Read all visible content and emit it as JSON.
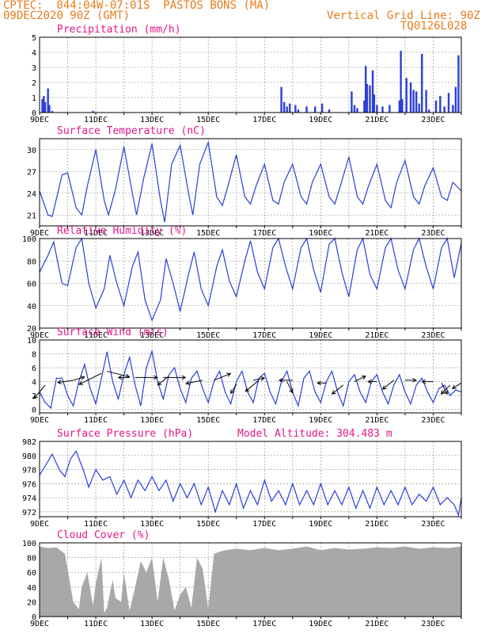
{
  "header": {
    "line1": "CPTEC:  044:04W-07:01S  PASTOS BONS (MA)",
    "line2_left": "09DEC2020 90Z (GMT)",
    "line2_right": "Vertical Grid Line: 90Z",
    "line3_right": "TQ0126L028"
  },
  "colors": {
    "line": "#2a3fd6",
    "bar": "#2a3fd6",
    "cloud": "#a8a8a8",
    "title": "#e0198a",
    "header": "#e87b1c"
  },
  "chart_data": [
    {
      "type": "bar",
      "title": "Precipitation (mm/h)",
      "ylim": [
        0,
        5
      ],
      "yticks": [
        0,
        1,
        2,
        3,
        4,
        5
      ],
      "x_day_ticks": [
        "9DEC",
        "11DEC",
        "13DEC",
        "15DEC",
        "17DEC",
        "19DEC",
        "21DEC",
        "23DEC"
      ],
      "x_start": 9,
      "x_end": 24,
      "events": [
        [
          9.1,
          0.9
        ],
        [
          9.15,
          1.1
        ],
        [
          9.2,
          0.7
        ],
        [
          9.3,
          1.6
        ],
        [
          9.35,
          0.5
        ],
        [
          9.45,
          0.1
        ],
        [
          10.9,
          0.1
        ],
        [
          17.6,
          1.7
        ],
        [
          17.7,
          0.7
        ],
        [
          17.8,
          0.4
        ],
        [
          17.9,
          0.6
        ],
        [
          18.1,
          0.5
        ],
        [
          18.2,
          0.2
        ],
        [
          18.5,
          0.4
        ],
        [
          18.8,
          0.4
        ],
        [
          19.05,
          0.6
        ],
        [
          19.3,
          0.2
        ],
        [
          20.1,
          1.4
        ],
        [
          20.2,
          0.5
        ],
        [
          20.3,
          0.3
        ],
        [
          20.55,
          0.8
        ],
        [
          20.6,
          3.1
        ],
        [
          20.65,
          1.9
        ],
        [
          20.75,
          1.8
        ],
        [
          20.85,
          2.8
        ],
        [
          20.9,
          1.2
        ],
        [
          21.0,
          0.5
        ],
        [
          21.2,
          0.4
        ],
        [
          21.45,
          0.5
        ],
        [
          21.8,
          0.8
        ],
        [
          21.85,
          4.1
        ],
        [
          21.9,
          0.9
        ],
        [
          22.05,
          2.3
        ],
        [
          22.2,
          2.0
        ],
        [
          22.3,
          1.5
        ],
        [
          22.4,
          1.4
        ],
        [
          22.5,
          0.6
        ],
        [
          22.6,
          3.9
        ],
        [
          22.75,
          1.5
        ],
        [
          22.85,
          0.2
        ],
        [
          23.1,
          0.8
        ],
        [
          23.25,
          1.1
        ],
        [
          23.4,
          0.4
        ],
        [
          23.55,
          1.3
        ],
        [
          23.7,
          0.5
        ],
        [
          23.8,
          1.7
        ],
        [
          23.9,
          3.8
        ]
      ]
    },
    {
      "type": "line",
      "title": "Surface Temperature (nC)",
      "ylim": [
        19.5,
        31.5
      ],
      "yticks": [
        21,
        24,
        27,
        30
      ],
      "x_day_ticks": [
        "9DEC",
        "11DEC",
        "13DEC",
        "15DEC",
        "17DEC",
        "19DEC",
        "21DEC",
        "23DEC"
      ],
      "x": [
        9.0,
        9.3,
        9.45,
        9.8,
        10.0,
        10.3,
        10.5,
        10.7,
        11.0,
        11.3,
        11.45,
        11.7,
        12.0,
        12.3,
        12.45,
        12.7,
        13.0,
        13.3,
        13.45,
        13.7,
        14.0,
        14.3,
        14.45,
        14.7,
        15.0,
        15.3,
        15.5,
        15.7,
        16.0,
        16.3,
        16.5,
        16.7,
        17.0,
        17.3,
        17.5,
        17.7,
        18.0,
        18.3,
        18.5,
        18.7,
        19.0,
        19.3,
        19.5,
        19.7,
        20.0,
        20.3,
        20.5,
        20.7,
        21.0,
        21.3,
        21.5,
        21.7,
        22.0,
        22.3,
        22.5,
        22.7,
        23.0,
        23.3,
        23.5,
        23.7,
        24.0
      ],
      "y": [
        24.3,
        21.0,
        20.8,
        26.5,
        26.8,
        22.0,
        21.0,
        25.0,
        30.0,
        23.0,
        21.0,
        24.5,
        30.4,
        24.0,
        21.0,
        26.0,
        30.8,
        23.0,
        20.0,
        28.0,
        30.6,
        24.0,
        21.0,
        28.0,
        31.0,
        23.5,
        22.3,
        25.0,
        29.3,
        23.5,
        22.5,
        25.0,
        28.0,
        23.0,
        22.5,
        25.5,
        28.0,
        23.5,
        22.5,
        25.5,
        28.0,
        23.5,
        22.5,
        25.0,
        29.0,
        23.5,
        22.5,
        25.0,
        28.0,
        23.0,
        22.0,
        25.5,
        28.5,
        23.5,
        22.5,
        25.0,
        27.5,
        23.5,
        23.0,
        25.5,
        24.3
      ]
    },
    {
      "type": "line",
      "title": "Relative Humidity (%)",
      "ylim": [
        20,
        100
      ],
      "yticks": [
        20,
        40,
        60,
        80,
        100
      ],
      "x_day_ticks": [
        "9DEC",
        "11DEC",
        "13DEC",
        "15DEC",
        "17DEC",
        "19DEC",
        "21DEC",
        "23DEC"
      ],
      "x": [
        9.0,
        9.3,
        9.5,
        9.8,
        10.0,
        10.3,
        10.5,
        10.75,
        11.0,
        11.3,
        11.5,
        11.75,
        12.0,
        12.3,
        12.5,
        12.75,
        13.0,
        13.3,
        13.5,
        13.75,
        14.0,
        14.3,
        14.5,
        14.75,
        15.0,
        15.3,
        15.5,
        15.75,
        16.0,
        16.3,
        16.5,
        16.75,
        17.0,
        17.3,
        17.5,
        17.75,
        18.0,
        18.3,
        18.5,
        18.75,
        19.0,
        19.3,
        19.5,
        19.75,
        20.0,
        20.3,
        20.5,
        20.75,
        21.0,
        21.3,
        21.5,
        21.75,
        22.0,
        22.3,
        22.5,
        22.75,
        23.0,
        23.3,
        23.5,
        23.75,
        24.0
      ],
      "y": [
        70,
        85,
        97,
        60,
        58,
        92,
        100,
        60,
        38,
        55,
        85,
        60,
        40,
        75,
        88,
        45,
        27,
        45,
        82,
        60,
        35,
        68,
        88,
        55,
        40,
        75,
        90,
        62,
        48,
        80,
        98,
        70,
        55,
        92,
        100,
        75,
        55,
        92,
        100,
        72,
        52,
        95,
        100,
        70,
        48,
        90,
        100,
        68,
        55,
        92,
        100,
        72,
        55,
        90,
        100,
        75,
        55,
        92,
        100,
        65,
        96
      ]
    },
    {
      "type": "line",
      "title": "Surface Wind (m/s)",
      "ylim": [
        -0.5,
        10
      ],
      "yticks": [
        0,
        2,
        4,
        6,
        8,
        10
      ],
      "x_day_ticks": [
        "9DEC",
        "11DEC",
        "13DEC",
        "15DEC",
        "17DEC",
        "19DEC",
        "21DEC",
        "23DEC"
      ],
      "x": [
        9.0,
        9.2,
        9.4,
        9.6,
        9.8,
        10.0,
        10.2,
        10.4,
        10.6,
        10.8,
        11.0,
        11.2,
        11.4,
        11.6,
        11.8,
        12.0,
        12.2,
        12.4,
        12.6,
        12.8,
        13.0,
        13.2,
        13.4,
        13.6,
        13.8,
        14.0,
        14.2,
        14.4,
        14.6,
        14.8,
        15.0,
        15.2,
        15.4,
        15.6,
        15.8,
        16.0,
        16.2,
        16.4,
        16.6,
        16.8,
        17.0,
        17.2,
        17.4,
        17.6,
        17.8,
        18.0,
        18.2,
        18.4,
        18.6,
        18.8,
        19.0,
        19.2,
        19.4,
        19.6,
        19.8,
        20.0,
        20.2,
        20.4,
        20.6,
        20.8,
        21.0,
        21.2,
        21.4,
        21.6,
        21.8,
        22.0,
        22.2,
        22.4,
        22.6,
        22.8,
        23.0,
        23.2,
        23.4,
        23.6,
        23.8,
        24.0
      ],
      "y": [
        2.5,
        1.0,
        0.2,
        4.5,
        4.5,
        2.0,
        0.5,
        4.0,
        6.5,
        3.0,
        0.8,
        4.5,
        8.3,
        4.0,
        1.5,
        5.0,
        7.5,
        3.5,
        0.5,
        6.0,
        8.4,
        4.0,
        1.5,
        5.0,
        6.0,
        3.0,
        1.0,
        4.5,
        5.5,
        3.0,
        1.0,
        4.0,
        5.5,
        2.5,
        0.8,
        4.0,
        5.5,
        2.5,
        1.0,
        4.5,
        5.2,
        2.5,
        0.8,
        4.0,
        5.5,
        2.5,
        0.5,
        4.5,
        5.5,
        2.5,
        1.0,
        4.0,
        5.5,
        2.5,
        0.5,
        4.0,
        5.0,
        2.5,
        1.0,
        4.0,
        5.0,
        2.5,
        0.8,
        3.5,
        5.0,
        2.5,
        0.8,
        3.5,
        4.5,
        2.5,
        1.0,
        3.0,
        3.5,
        2.0,
        2.8,
        2.5
      ],
      "arrows": [
        [
          9.2,
          3.5,
          -1.0,
          -1.2
        ],
        [
          10.2,
          4.2,
          -1.4,
          -0.2
        ],
        [
          10.2,
          4.2,
          1.0,
          0.3
        ],
        [
          11.2,
          5.2,
          -2.0,
          -1.0
        ],
        [
          11.4,
          5.5,
          2.0,
          -0.5
        ],
        [
          12.4,
          4.6,
          2.0,
          0.0
        ],
        [
          12.2,
          4.6,
          -1.0,
          0.0
        ],
        [
          13.4,
          4.6,
          2.0,
          0.0
        ],
        [
          13.6,
          4.8,
          -1.0,
          -0.8
        ],
        [
          14.8,
          4.2,
          -1.5,
          -0.3
        ],
        [
          15.2,
          4.2,
          1.5,
          0.6
        ],
        [
          16.0,
          3.6,
          -0.5,
          -0.8
        ],
        [
          16.6,
          4.2,
          1.0,
          0.2
        ],
        [
          16.8,
          4.2,
          -1.2,
          -1.0
        ],
        [
          18.0,
          4.2,
          -1.2,
          0.0
        ],
        [
          17.8,
          4.0,
          0.5,
          -1.0
        ],
        [
          19.2,
          3.8,
          -0.8,
          0.0
        ],
        [
          19.8,
          3.5,
          -1.0,
          -0.8
        ],
        [
          20.2,
          4.0,
          1.0,
          0.5
        ],
        [
          21.0,
          4.0,
          -0.8,
          0.0
        ],
        [
          21.6,
          4.2,
          -1.0,
          -0.8
        ],
        [
          22.0,
          4.2,
          1.0,
          0.0
        ],
        [
          23.0,
          4.0,
          -1.0,
          0.0
        ],
        [
          23.3,
          3.8,
          0.5,
          -1.0
        ],
        [
          23.6,
          3.5,
          -0.8,
          -0.8
        ],
        [
          24.0,
          3.8,
          -0.8,
          -0.5
        ]
      ]
    },
    {
      "type": "line",
      "title": "Surface Pressure (hPa)",
      "title2": "Model Altitude: 304.483 m",
      "ylim": [
        971.3,
        982
      ],
      "yticks": [
        972,
        974,
        976,
        978,
        980,
        982
      ],
      "x_day_ticks": [
        "9DEC",
        "11DEC",
        "13DEC",
        "15DEC",
        "17DEC",
        "19DEC",
        "21DEC",
        "23DEC"
      ],
      "x": [
        9.0,
        9.2,
        9.45,
        9.7,
        9.9,
        10.1,
        10.3,
        10.55,
        10.75,
        11.0,
        11.25,
        11.5,
        11.75,
        12.0,
        12.25,
        12.5,
        12.75,
        13.0,
        13.25,
        13.5,
        13.75,
        14.0,
        14.25,
        14.5,
        14.75,
        15.0,
        15.25,
        15.5,
        15.75,
        16.0,
        16.25,
        16.5,
        16.75,
        17.0,
        17.25,
        17.5,
        17.75,
        18.0,
        18.25,
        18.5,
        18.75,
        19.0,
        19.25,
        19.5,
        19.75,
        20.0,
        20.25,
        20.5,
        20.75,
        21.0,
        21.25,
        21.5,
        21.75,
        22.0,
        22.25,
        22.5,
        22.75,
        23.0,
        23.25,
        23.5,
        23.75,
        23.9,
        24.0
      ],
      "y": [
        977.2,
        978.5,
        980.2,
        978.0,
        977.0,
        979.5,
        980.6,
        978.0,
        975.5,
        978.0,
        976.5,
        977.0,
        974.5,
        976.5,
        974.0,
        976.5,
        975.0,
        977.0,
        975.0,
        976.5,
        973.5,
        976.0,
        974.0,
        976.0,
        973.0,
        975.5,
        972.0,
        975.0,
        973.0,
        976.0,
        972.5,
        975.0,
        973.0,
        976.5,
        973.5,
        975.0,
        973.0,
        976.0,
        973.0,
        975.0,
        973.0,
        976.0,
        973.0,
        975.0,
        973.0,
        975.5,
        972.5,
        975.0,
        972.5,
        975.5,
        973.0,
        975.0,
        973.0,
        975.5,
        973.0,
        974.5,
        973.5,
        975.5,
        973.0,
        974.0,
        973.0,
        971.5,
        974.0
      ]
    },
    {
      "type": "area",
      "title": "Cloud Cover (%)",
      "ylim": [
        0,
        100
      ],
      "yticks": [
        0,
        20,
        40,
        60,
        80,
        100
      ],
      "x_day_ticks": [
        "9DEC",
        "11DEC",
        "13DEC",
        "15DEC",
        "17DEC",
        "19DEC",
        "21DEC",
        "23DEC"
      ],
      "x": [
        9.0,
        9.3,
        9.6,
        9.9,
        10.2,
        10.4,
        10.5,
        10.7,
        10.9,
        11.0,
        11.2,
        11.3,
        11.4,
        11.6,
        11.7,
        11.9,
        12.0,
        12.2,
        12.4,
        12.6,
        12.8,
        13.0,
        13.2,
        13.4,
        13.6,
        13.8,
        14.0,
        14.2,
        14.4,
        14.6,
        14.8,
        15.0,
        15.2,
        15.4,
        15.6,
        16.0,
        16.5,
        17.0,
        17.5,
        18.0,
        18.5,
        19.0,
        19.5,
        20.0,
        20.5,
        21.0,
        21.5,
        22.0,
        22.5,
        23.0,
        23.5,
        24.0
      ],
      "y": [
        95,
        93,
        94,
        85,
        20,
        10,
        40,
        60,
        15,
        45,
        80,
        5,
        12,
        50,
        25,
        20,
        60,
        8,
        40,
        75,
        60,
        80,
        20,
        80,
        50,
        8,
        30,
        40,
        12,
        80,
        65,
        10,
        85,
        88,
        90,
        92,
        90,
        93,
        90,
        92,
        95,
        90,
        93,
        91,
        92,
        94,
        93,
        95,
        92,
        94,
        93,
        95
      ]
    }
  ]
}
